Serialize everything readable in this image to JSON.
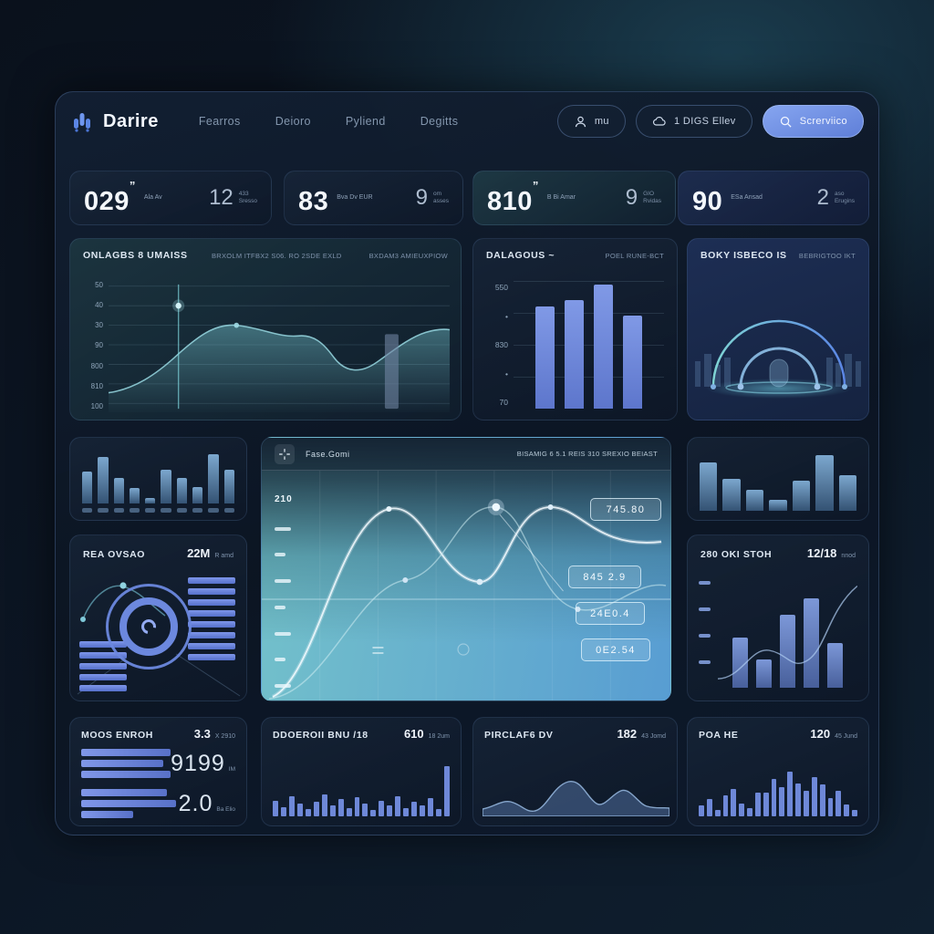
{
  "colors": {
    "accent": "#7d9ce8",
    "bar_blue": "#6b85d6",
    "teal": "#7fd4d4"
  },
  "header": {
    "brand": "Darire",
    "nav": [
      "Fearros",
      "Deioro",
      "Pyliend",
      "Degitts"
    ],
    "button_profile": "mu",
    "button_cloud": "1 DIGS Ellev",
    "button_primary": "Screrviico"
  },
  "stats": [
    {
      "value": "029",
      "sup": "”",
      "label": "Ala Av",
      "side": "12",
      "side_top": "433",
      "side_bottom": "Sresso"
    },
    {
      "value": "83",
      "sup": "",
      "label": "Bva Dv EUR",
      "side": "9",
      "side_top": "om",
      "side_bottom": "asses"
    },
    {
      "value": "810",
      "sup": "”",
      "label": "B Bi Amar",
      "side": "9",
      "side_top": "GIO",
      "side_bottom": "Rvidas"
    },
    {
      "value": "90",
      "sup": "",
      "label": "ESa Ansad",
      "side": "2",
      "side_top": "aso",
      "side_bottom": "Erugins"
    }
  ],
  "line_panel": {
    "title": "ONLAGBS 8 UMAISS",
    "meta1": "BRXOLM ITFBX2 S06. RO 2SDE EXLD",
    "meta2": "BXDAM3 AMIEUXPIOW",
    "yticks": [
      "50",
      "40",
      "30",
      "90",
      "800",
      "810",
      "100"
    ]
  },
  "bar_panel": {
    "title": "DALAGOUS ~",
    "meta": "POEL RUNE-BCT",
    "yticks": [
      "550",
      "•",
      "830",
      "•",
      "70"
    ],
    "values": [
      80,
      85,
      97,
      73
    ]
  },
  "arc_panel": {
    "title": "BOKY ISBECO IS",
    "meta": "BEBRIGTOO IKT"
  },
  "minibars_left": {
    "values": [
      58,
      85,
      46,
      28,
      10,
      62,
      46,
      30,
      90,
      62
    ]
  },
  "gauge_panel": {
    "title": "REA OVSAO",
    "value": "22M",
    "unit": "R amd",
    "left_stack": [
      1,
      1,
      1,
      1,
      1
    ],
    "right_stack": [
      1,
      1,
      1,
      1,
      1,
      1,
      1,
      1
    ]
  },
  "center_panel": {
    "title": "Fase.Gomi",
    "meta": "BISAMIG 6 5.1 REIS 310 SREXIO BEIAST",
    "ytop": "210",
    "boxes": [
      "745.80",
      "845 2.9",
      "24E0.4",
      "0E2.54"
    ]
  },
  "minibars_right": {
    "values": [
      78,
      52,
      34,
      18,
      48,
      90,
      58
    ]
  },
  "mixed_panel": {
    "title": "280 OKI STOH",
    "value": "12/18",
    "unit": "nnod",
    "ticks": [
      1,
      1,
      1,
      1
    ],
    "values": [
      45,
      25,
      65,
      80,
      40
    ]
  },
  "bottom_panels": [
    {
      "title": "MOOS ENROH",
      "value": "3.3",
      "unit": "X 2910",
      "metric1": "9199",
      "metric1_unit": "IM",
      "metric2": "2.0",
      "metric2_unit": "Ba Elio",
      "rows1": [
        100,
        92,
        100
      ],
      "rows2": [
        90,
        100,
        55
      ]
    },
    {
      "title": "DDOEROII BNU /18",
      "value": "610",
      "unit": "18 2um",
      "values": [
        30,
        18,
        38,
        24,
        14,
        28,
        42,
        20,
        32,
        16,
        36,
        24,
        12,
        30,
        20,
        38,
        16,
        28,
        20,
        34,
        14,
        95
      ]
    },
    {
      "title": "PIRCLAF6 DV",
      "value": "182",
      "unit": "43 Jomd"
    },
    {
      "title": "POA HE",
      "value": "120",
      "unit": "45 Jund",
      "values": [
        20,
        32,
        12,
        40,
        52,
        24,
        16,
        44,
        44,
        70,
        55,
        85,
        62,
        48,
        75,
        60,
        35,
        48,
        22,
        12
      ]
    }
  ]
}
